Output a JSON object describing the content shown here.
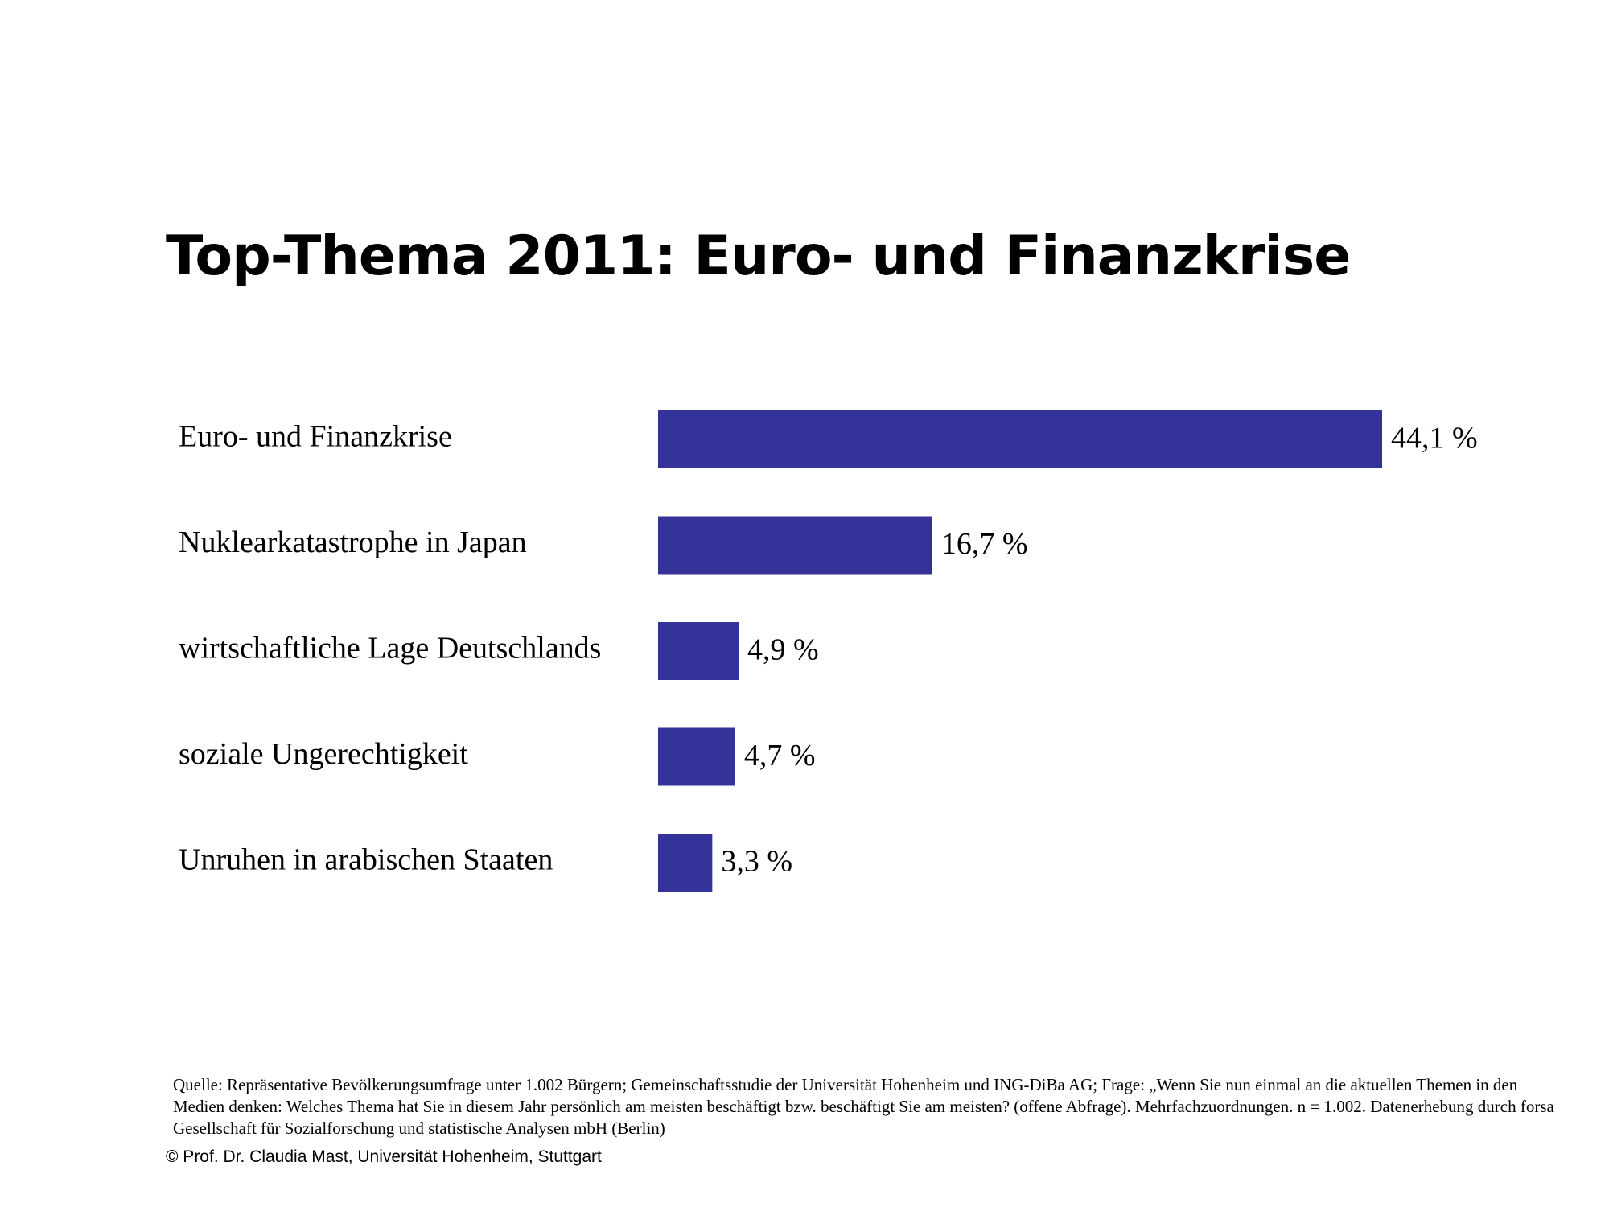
{
  "title": "Top-Thema 2011: Euro- und Finanzkrise",
  "source_text": "Quelle: Repräsentative Bevölkerungsumfrage unter 1.002 Bürgern; Gemeinschaftsstudie der Universität Hohenheim und ING-DiBa AG; Frage: „Wenn Sie nun einmal an die aktuellen Themen in den Medien denken: Welches Thema hat Sie in diesem Jahr persönlich am meisten beschäftigt bzw. beschäftigt Sie am meisten? (offene Abfrage). Mehrfachzuordnungen. n = 1.002. Datenerhebung durch forsa Gesellschaft für Sozialforschung und statistische Analysen mbH (Berlin)",
  "copyright": "© Prof. Dr. Claudia Mast, Universität Hohenheim, Stuttgart",
  "colors": {
    "bar": "#333399"
  },
  "chart_data": {
    "type": "bar",
    "orientation": "horizontal",
    "title": "Top-Thema 2011: Euro- und Finanzkrise",
    "xlabel": "",
    "ylabel": "",
    "unit": "%",
    "grid": false,
    "categories": [
      "Euro- und Finanzkrise",
      "Nuklearkatastrophe in Japan",
      "wirtschaftliche Lage Deutschlands",
      "soziale Ungerechtigkeit",
      "Unruhen in arabischen Staaten"
    ],
    "values": [
      44.1,
      16.7,
      4.9,
      4.7,
      3.3
    ],
    "value_labels": [
      "44,1 %",
      "16,7 %",
      "4,9 %",
      "4,7 %",
      "3,3 %"
    ],
    "xlim": [
      0,
      44.1
    ]
  }
}
